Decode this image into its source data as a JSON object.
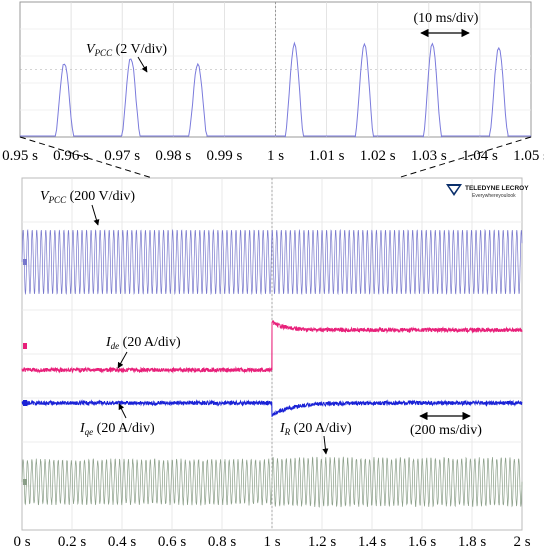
{
  "chart_data": [
    {
      "type": "line",
      "panel": "zoomed",
      "x_ticks": [
        "0.95 s",
        "0.96 s",
        "0.97 s",
        "0.98 s",
        "0.99 s",
        "1 s",
        "1.01 s",
        "1.02 s",
        "1.03 s",
        "1.04 s",
        "1.05 s"
      ],
      "xlim": [
        0.95,
        1.05
      ],
      "x_unit": "s",
      "grid": true,
      "scale_label": "(10 ms/div)",
      "series": [
        {
          "name": "VPCC (2 V/div)",
          "label_main": "V",
          "label_sub": "PCC",
          "label_tail": " (2 V/div)",
          "color": "#7b7bdc",
          "peak_times": [
            0.9587,
            0.9717,
            0.9848,
            1.0037,
            1.0174,
            1.0307,
            1.0437
          ],
          "peak_heights": [
            0.54,
            0.58,
            0.53,
            0.68,
            0.68,
            0.68,
            0.66
          ]
        }
      ]
    },
    {
      "type": "line",
      "panel": "main",
      "x_ticks": [
        "0 s",
        "0.2 s",
        "0.4 s",
        "0.6 s",
        "0.8 s",
        "1 s",
        "1.2 s",
        "1.4 s",
        "1.6 s",
        "1.8 s",
        "2 s"
      ],
      "xlim": [
        0,
        2
      ],
      "x_unit": "s",
      "grid": true,
      "scale_label": "(200 ms/div)",
      "zoom_window": [
        0.95,
        1.05
      ],
      "series": [
        {
          "name": "VPCC (200 V/div)",
          "label_main": "V",
          "label_sub": "PCC",
          "label_tail": " (200 V/div)",
          "color": "#7777cc",
          "kind": "sine"
        },
        {
          "name": "Ide (20 A/div)",
          "label_main": "I",
          "label_sub": "de",
          "label_tail": " (20 A/div)",
          "color": "#e8207a",
          "kind": "step_up"
        },
        {
          "name": "Iqe (20 A/div)",
          "label_main": "I",
          "label_sub": "qe",
          "label_tail": " (20 A/div)",
          "color": "#1a22d6",
          "kind": "dip_recover"
        },
        {
          "name": "IR (20 A/div)",
          "label_main": "I",
          "label_sub": "R",
          "label_tail": " (20 A/div)",
          "color": "#8a9e88",
          "kind": "sine"
        }
      ]
    }
  ],
  "logo": {
    "brand": "TELEDYNE LECROY",
    "tagline": "Everywhereyoulook"
  }
}
